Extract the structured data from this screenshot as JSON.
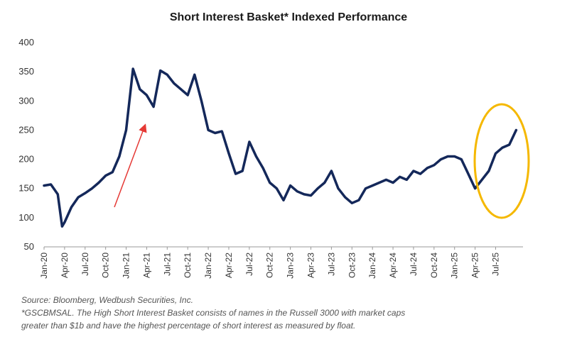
{
  "chart_data": {
    "type": "line",
    "title": "Short Interest Basket* Indexed Performance",
    "ylim": [
      50,
      400
    ],
    "y_ticks": [
      "400",
      "350",
      "300",
      "250",
      "200",
      "150",
      "100",
      "50"
    ],
    "x_ticks": [
      "Jan-20",
      "Apr-20",
      "Jul-20",
      "Oct-20",
      "Jan-21",
      "Apr-21",
      "Jul-21",
      "Oct-21",
      "Jan-22",
      "Apr-22",
      "Jul-22",
      "Oct-22",
      "Jan-23",
      "Apr-23",
      "Jul-23",
      "Oct-23",
      "Jan-24",
      "Apr-24",
      "Jul-24",
      "Oct-24",
      "Jan-25",
      "Apr-25",
      "Jul-25"
    ],
    "grid": false,
    "series": [
      {
        "color": "#14285a",
        "points": [
          [
            "2020-01",
            155
          ],
          [
            "2020-02",
            157
          ],
          [
            "2020-03",
            140
          ],
          [
            "2020-03-20",
            85
          ],
          [
            "2020-04",
            92
          ],
          [
            "2020-05",
            118
          ],
          [
            "2020-06",
            135
          ],
          [
            "2020-07",
            142
          ],
          [
            "2020-08",
            150
          ],
          [
            "2020-09",
            160
          ],
          [
            "2020-10",
            172
          ],
          [
            "2020-11",
            178
          ],
          [
            "2020-12",
            205
          ],
          [
            "2021-01",
            250
          ],
          [
            "2021-02",
            355
          ],
          [
            "2021-03",
            320
          ],
          [
            "2021-04",
            310
          ],
          [
            "2021-05",
            290
          ],
          [
            "2021-06",
            352
          ],
          [
            "2021-07",
            345
          ],
          [
            "2021-08",
            330
          ],
          [
            "2021-09",
            320
          ],
          [
            "2021-10",
            310
          ],
          [
            "2021-11",
            345
          ],
          [
            "2021-12",
            300
          ],
          [
            "2022-01",
            250
          ],
          [
            "2022-02",
            245
          ],
          [
            "2022-03",
            248
          ],
          [
            "2022-04",
            210
          ],
          [
            "2022-05",
            175
          ],
          [
            "2022-06",
            180
          ],
          [
            "2022-07",
            230
          ],
          [
            "2022-08",
            205
          ],
          [
            "2022-09",
            185
          ],
          [
            "2022-10",
            160
          ],
          [
            "2022-11",
            150
          ],
          [
            "2022-12",
            130
          ],
          [
            "2023-01",
            155
          ],
          [
            "2023-02",
            145
          ],
          [
            "2023-03",
            140
          ],
          [
            "2023-04",
            138
          ],
          [
            "2023-05",
            150
          ],
          [
            "2023-06",
            160
          ],
          [
            "2023-07",
            180
          ],
          [
            "2023-08",
            150
          ],
          [
            "2023-09",
            135
          ],
          [
            "2023-10",
            125
          ],
          [
            "2023-11",
            130
          ],
          [
            "2023-12",
            150
          ],
          [
            "2024-01",
            155
          ],
          [
            "2024-02",
            160
          ],
          [
            "2024-03",
            165
          ],
          [
            "2024-04",
            160
          ],
          [
            "2024-05",
            170
          ],
          [
            "2024-06",
            165
          ],
          [
            "2024-07",
            180
          ],
          [
            "2024-08",
            175
          ],
          [
            "2024-09",
            185
          ],
          [
            "2024-10",
            190
          ],
          [
            "2024-11",
            200
          ],
          [
            "2024-12",
            205
          ],
          [
            "2025-01",
            205
          ],
          [
            "2025-02",
            200
          ],
          [
            "2025-03",
            175
          ],
          [
            "2025-04",
            150
          ],
          [
            "2025-05",
            165
          ],
          [
            "2025-06",
            180
          ],
          [
            "2025-07",
            210
          ],
          [
            "2025-08",
            220
          ],
          [
            "2025-09",
            225
          ],
          [
            "2025-10",
            250
          ]
        ]
      }
    ],
    "annotations": [
      {
        "type": "arrow",
        "color": "#e53935"
      },
      {
        "type": "circle",
        "color": "#f5b800"
      }
    ]
  },
  "footnotes": {
    "source": "Source: Bloomberg, Wedbush Securities, Inc.",
    "note_line1": "*GSCBMSAL. The High Short Interest Basket consists of names in the Russell 3000 with market caps",
    "note_line2": "greater than $1b and have the highest percentage of short interest as measured by float."
  }
}
